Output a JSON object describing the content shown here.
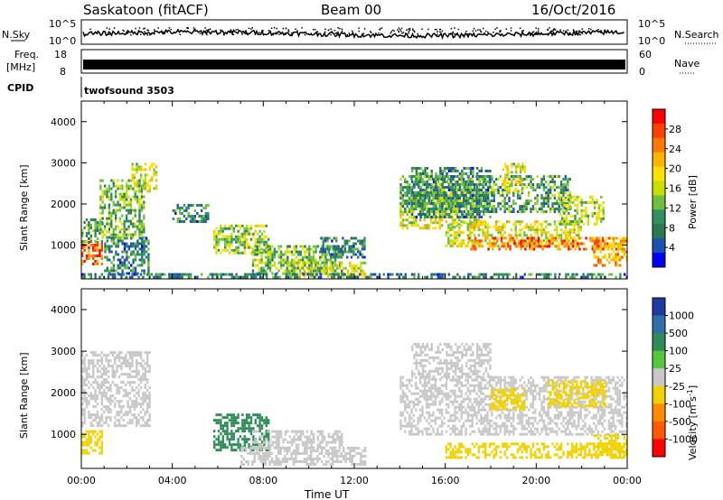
{
  "header": {
    "station": "Saskatoon (fitACF)",
    "beam": "Beam 00",
    "date": "16/Oct/2016"
  },
  "top_panels": {
    "nsky_label": "N.Sky",
    "nsky_ticks": [
      "10^5",
      "10^0"
    ],
    "nsearch_label": "N.Search",
    "nsearch_ticks": [
      "10^5",
      "10^0"
    ],
    "freq_label": "Freq.",
    "freq_unit": "[MHz]",
    "freq_ticks": [
      "18",
      "8"
    ],
    "nave_label": "Nave",
    "nave_ticks": [
      "60",
      "0"
    ],
    "cpid_label": "CPID",
    "cpid_value": "twofsound 3503"
  },
  "chart_data": [
    {
      "type": "heatmap",
      "panel": "power",
      "xlabel": "",
      "ylabel": "Slant Range [km]",
      "ylim": [
        180,
        4500
      ],
      "yticks": [
        1000,
        2000,
        3000,
        4000
      ],
      "xlim": [
        0,
        24
      ],
      "colorbar": {
        "label": "Power [dB]",
        "ticks": [
          "28",
          "24",
          "20",
          "16",
          "12",
          "8",
          "4"
        ],
        "colors": [
          "#ff0000",
          "#ff4000",
          "#ff7a00",
          "#ffb400",
          "#ffe000",
          "#c8e000",
          "#70c040",
          "#2f9060",
          "#2a7850",
          "#1e50b0",
          "#0000ff"
        ]
      },
      "regions": [
        {
          "x": [
            0.0,
            0.9
          ],
          "y": [
            550,
            1100
          ],
          "value": 24
        },
        {
          "x": [
            0.0,
            0.9
          ],
          "y": [
            1100,
            1650
          ],
          "value": 10
        },
        {
          "x": [
            0.8,
            2.8
          ],
          "y": [
            1200,
            2600
          ],
          "value": 12
        },
        {
          "x": [
            1.0,
            3.0
          ],
          "y": [
            300,
            1200
          ],
          "value": 8
        },
        {
          "x": [
            2.2,
            3.3
          ],
          "y": [
            2300,
            3000
          ],
          "value": 16
        },
        {
          "x": [
            4.0,
            5.6
          ],
          "y": [
            1600,
            2000
          ],
          "value": 8
        },
        {
          "x": [
            5.8,
            8.2
          ],
          "y": [
            800,
            1500
          ],
          "value": 14
        },
        {
          "x": [
            7.5,
            11.5
          ],
          "y": [
            300,
            1000
          ],
          "value": 12
        },
        {
          "x": [
            9.0,
            12.5
          ],
          "y": [
            250,
            600
          ],
          "value": 16
        },
        {
          "x": [
            10.5,
            12.5
          ],
          "y": [
            700,
            1200
          ],
          "value": 8
        },
        {
          "x": [
            14.0,
            17.5
          ],
          "y": [
            1400,
            2300
          ],
          "value": 16
        },
        {
          "x": [
            14.5,
            18.0
          ],
          "y": [
            1700,
            2900
          ],
          "value": 8
        },
        {
          "x": [
            16.0,
            22.0
          ],
          "y": [
            1000,
            1600
          ],
          "value": 16
        },
        {
          "x": [
            17.0,
            23.8
          ],
          "y": [
            900,
            1200
          ],
          "value": 24
        },
        {
          "x": [
            22.5,
            24.0
          ],
          "y": [
            500,
            1200
          ],
          "value": 20
        },
        {
          "x": [
            14.0,
            21.5
          ],
          "y": [
            1800,
            2700
          ],
          "value": 10
        },
        {
          "x": [
            18.5,
            19.5
          ],
          "y": [
            2300,
            3000
          ],
          "value": 16
        },
        {
          "x": [
            21.0,
            23.0
          ],
          "y": [
            1500,
            2200
          ],
          "value": 14
        },
        {
          "x": [
            0.0,
            24.0
          ],
          "y": [
            190,
            320
          ],
          "value": 8
        }
      ]
    },
    {
      "type": "heatmap",
      "panel": "velocity",
      "xlabel": "Time UT",
      "ylabel": "Slant Range [km]",
      "ylim": [
        180,
        4500
      ],
      "yticks": [
        1000,
        2000,
        3000,
        4000
      ],
      "xlim": [
        0,
        24
      ],
      "xticks": [
        "00:00",
        "04:00",
        "08:00",
        "12:00",
        "16:00",
        "20:00",
        "00:00"
      ],
      "colorbar": {
        "label": "Velocity [m s",
        "label_exponent": "-1",
        "label_end": "]",
        "ticks": [
          "1000",
          "500",
          "100",
          "25",
          "-25",
          "-100",
          "-500",
          "-1000"
        ],
        "colors": [
          "#1e3ca0",
          "#2f6ea8",
          "#2e8b57",
          "#55c840",
          "#c8c8c8",
          "#f0d200",
          "#ff8c00",
          "#ff5a00",
          "#ff0000"
        ]
      },
      "ground_scatter_color": "#c8c8c8",
      "regions": [
        {
          "x": [
            0.0,
            0.9
          ],
          "y": [
            550,
            1100
          ],
          "value": -300
        },
        {
          "x": [
            0.0,
            3.0
          ],
          "y": [
            1200,
            3000
          ],
          "value": 0
        },
        {
          "x": [
            5.8,
            8.2
          ],
          "y": [
            600,
            1500
          ],
          "value": 60
        },
        {
          "x": [
            7.0,
            12.5
          ],
          "y": [
            250,
            700
          ],
          "value": -60
        },
        {
          "x": [
            7.5,
            11.5
          ],
          "y": [
            700,
            1100
          ],
          "value": 0
        },
        {
          "x": [
            14.0,
            24.0
          ],
          "y": [
            1000,
            2400
          ],
          "value": 0
        },
        {
          "x": [
            14.5,
            18.0
          ],
          "y": [
            2300,
            3200
          ],
          "value": 0
        },
        {
          "x": [
            18.0,
            19.5
          ],
          "y": [
            1600,
            2100
          ],
          "value": -400
        },
        {
          "x": [
            20.5,
            23.0
          ],
          "y": [
            1700,
            2300
          ],
          "value": -120
        },
        {
          "x": [
            22.5,
            24.0
          ],
          "y": [
            500,
            1000
          ],
          "value": -200
        },
        {
          "x": [
            16.0,
            24.0
          ],
          "y": [
            450,
            800
          ],
          "value": -150
        }
      ]
    }
  ]
}
